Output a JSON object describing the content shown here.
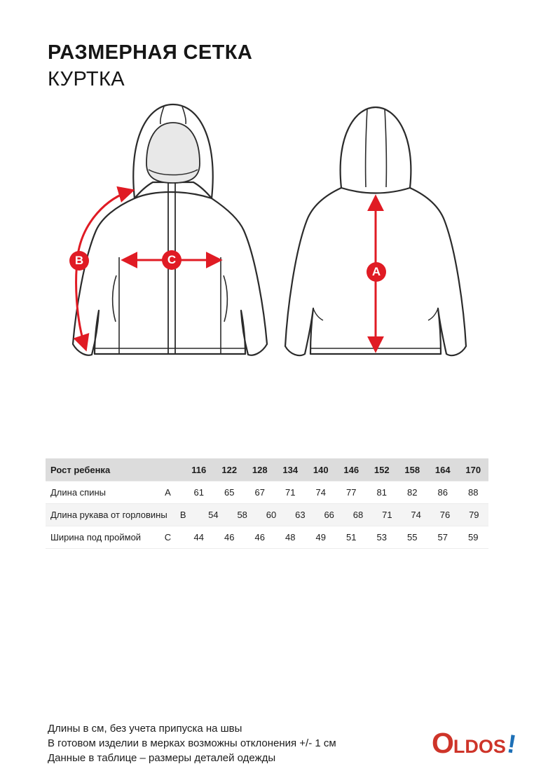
{
  "page": {
    "title": "РАЗМЕРНАЯ СЕТКА",
    "subtitle": "КУРТКА"
  },
  "diagram": {
    "front_view": "jacket-front-technical-drawing",
    "back_view": "jacket-back-technical-drawing",
    "markers": {
      "a": "A",
      "b": "B",
      "c": "C"
    },
    "accent_color": "#e01b24",
    "line_color": "#2b2b2b",
    "hood_fill": "#e8e8e8"
  },
  "table": {
    "header": {
      "label": "Рост ребенка",
      "letter": "",
      "sizes": [
        "116",
        "122",
        "128",
        "134",
        "140",
        "146",
        "152",
        "158",
        "164",
        "170"
      ]
    },
    "rows": [
      {
        "label": "Длина спины",
        "letter": "A",
        "values": [
          "61",
          "65",
          "67",
          "71",
          "74",
          "77",
          "81",
          "82",
          "86",
          "88"
        ]
      },
      {
        "label": "Длина рукава от горловины",
        "letter": "B",
        "values": [
          "54",
          "58",
          "60",
          "63",
          "66",
          "68",
          "71",
          "74",
          "76",
          "79"
        ]
      },
      {
        "label": "Ширина под проймой",
        "letter": "C",
        "values": [
          "44",
          "46",
          "46",
          "48",
          "49",
          "51",
          "53",
          "55",
          "57",
          "59"
        ]
      }
    ]
  },
  "footnotes": [
    "Длины в см, без учета припуска на швы",
    "В готовом изделии в мерках возможны отклонения +/- 1 см",
    "Данные в таблице – размеры деталей одежды"
  ],
  "logo": {
    "o": "O",
    "ldos": "LDOS",
    "bang": "!",
    "red": "#ce3429",
    "blue": "#1d70b7"
  }
}
